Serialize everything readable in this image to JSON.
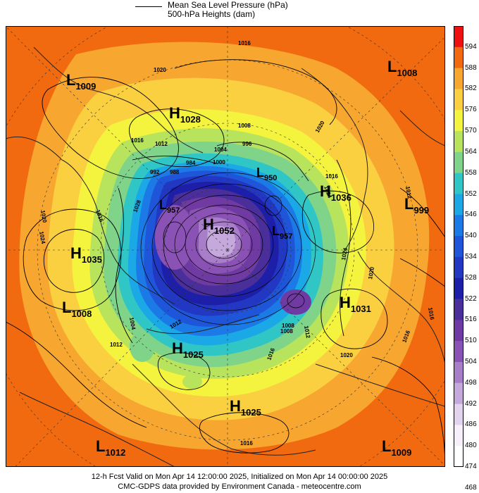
{
  "legend": {
    "line1": "Mean Sea Level Pressure (hPa)",
    "line2": "500-hPa Heights (dam)"
  },
  "colorbar": {
    "labels": [
      "594",
      "588",
      "582",
      "576",
      "570",
      "564",
      "558",
      "552",
      "546",
      "540",
      "534",
      "528",
      "522",
      "516",
      "510",
      "504",
      "498",
      "492",
      "486",
      "480",
      "474",
      "468"
    ],
    "colors": [
      "#ee1111",
      "#f26a10",
      "#f7a630",
      "#fbd040",
      "#f4f33d",
      "#b8e35c",
      "#7fd48a",
      "#30c6c6",
      "#1aa9e6",
      "#1c7ae6",
      "#1f55d8",
      "#2237c2",
      "#1e1fa8",
      "#4a2e9a",
      "#6f3aa2",
      "#8a52b4",
      "#a87ec9",
      "#c6a9dc",
      "#e2d4ee",
      "#f7f0fb"
    ]
  },
  "centers": [
    {
      "type": "L",
      "value": "1009"
    },
    {
      "type": "H",
      "value": "1028"
    },
    {
      "type": "L",
      "value": "1008"
    },
    {
      "type": "H",
      "value": "1036"
    },
    {
      "type": "L",
      "value": "999"
    },
    {
      "type": "H",
      "value": "1035"
    },
    {
      "type": "L",
      "value": "1008"
    },
    {
      "type": "L",
      "value": "957"
    },
    {
      "type": "H",
      "value": "1052"
    },
    {
      "type": "L",
      "value": "950"
    },
    {
      "type": "L",
      "value": "957"
    },
    {
      "type": "H",
      "value": "1031"
    },
    {
      "type": "H",
      "value": "1025"
    },
    {
      "type": "H",
      "value": "1025"
    },
    {
      "type": "L",
      "value": "1012"
    },
    {
      "type": "L",
      "value": "1009"
    }
  ],
  "contour_labels": [
    "1016",
    "1020",
    "1016",
    "1012",
    "1008",
    "1004",
    "1000",
    "996",
    "992",
    "988",
    "984",
    "1016",
    "1020",
    "1024",
    "1028",
    "1024",
    "1020",
    "1016",
    "1012",
    "1024",
    "1020",
    "1016",
    "1012",
    "1008",
    "1004",
    "1012",
    "1016",
    "1020",
    "1016",
    "1012",
    "1008",
    "1016"
  ],
  "footer": {
    "line1": "12-h Fcst Valid on Mon Apr 14 12:00:00 2025, Initialized on Mon Apr 14 00:00:00 2025",
    "line2": "CMC-GDPS data provided by Environment Canada - meteocentre.com"
  }
}
